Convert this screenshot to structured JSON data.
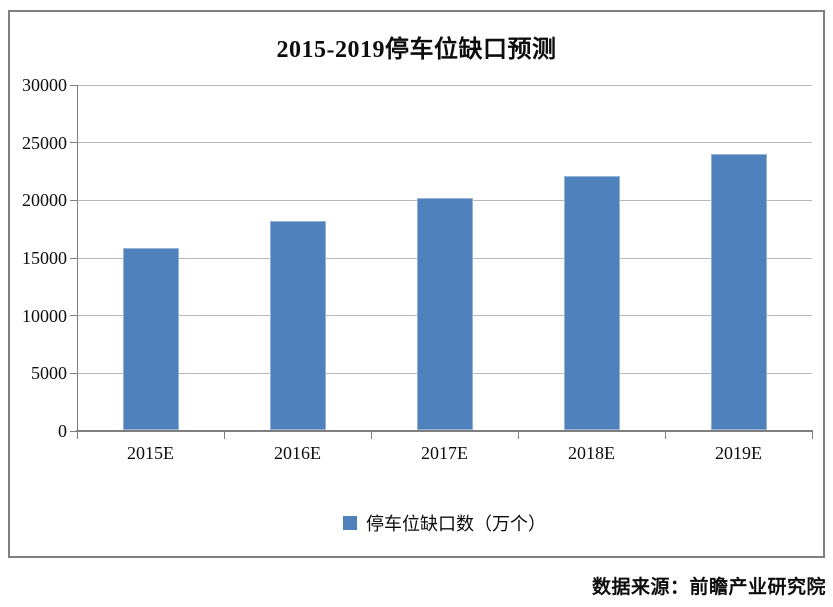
{
  "source_note": "数据来源：前瞻产业研究院",
  "chart_data": {
    "type": "bar",
    "title": "2015-2019停车位缺口预测",
    "categories": [
      "2015E",
      "2016E",
      "2017E",
      "2018E",
      "2019E"
    ],
    "series": [
      {
        "name": "停车位缺口数（万个）",
        "values": [
          15800,
          18100,
          20100,
          22000,
          23900
        ]
      }
    ],
    "xlabel": "",
    "ylabel": "",
    "ylim": [
      0,
      30000
    ],
    "ytick_step": 5000,
    "ytick_labels": [
      "0",
      "5000",
      "10000",
      "15000",
      "20000",
      "25000",
      "30000"
    ],
    "grid": "horizontal",
    "legend_position": "bottom",
    "colors": {
      "bar_fill": "#4f81bd",
      "bar_border": "#95b3d7",
      "gridline": "#b9b9b9",
      "axis": "#7f7f7f",
      "box_border": "#7f7f7f",
      "text": "#0d0d0d",
      "background": "#ffffff"
    }
  }
}
